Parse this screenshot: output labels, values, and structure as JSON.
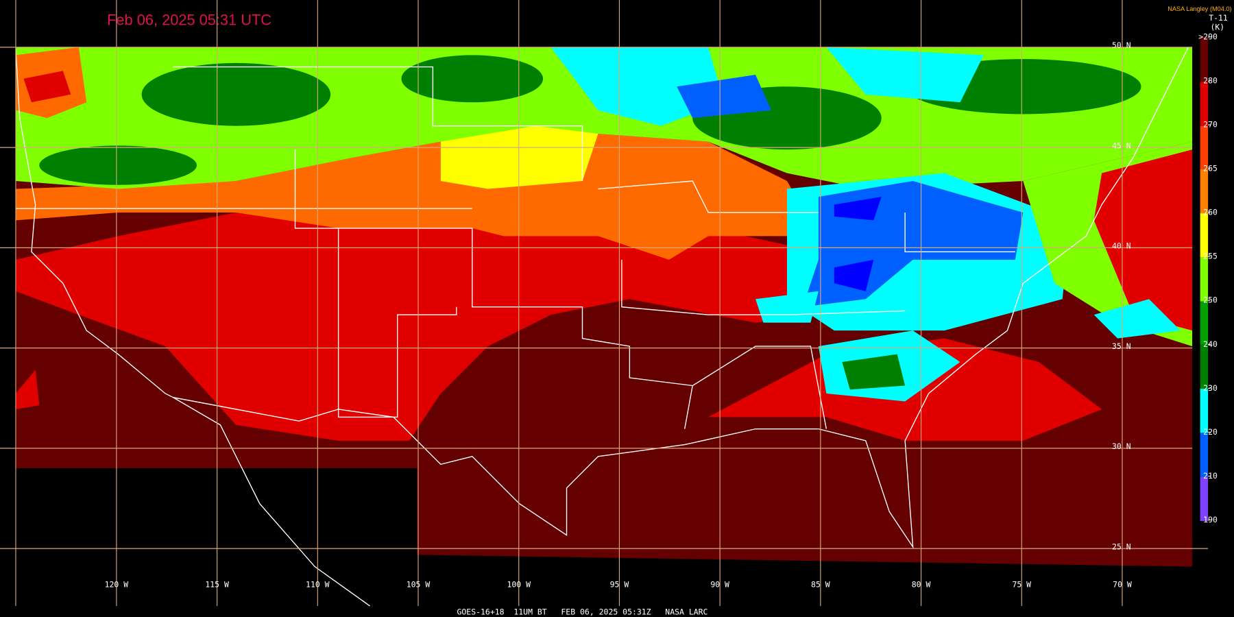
{
  "header": {
    "timestamp": "Feb 06, 2025 05:31 UTC",
    "credit": "NASA Langley (M04.0)"
  },
  "colorbar": {
    "title": "T-11",
    "unit": "(K)",
    "ticks": [
      {
        "value": 290,
        "label": ">290"
      },
      280,
      270,
      265,
      260,
      255,
      250,
      240,
      230,
      220,
      210,
      190
    ]
  },
  "latitude_labels": [
    "50 N",
    "45 N",
    "40 N",
    "35 N",
    "30 N",
    "25 N"
  ],
  "longitude_labels": [
    "120 W",
    "115 W",
    "110 W",
    "105 W",
    "100 W",
    "95 W",
    "90 W",
    "85 W",
    "80 W",
    "75 W",
    "70 W"
  ],
  "footer": "GOES-16+18  11UM BT   FEB 06, 2025 05:31Z   NASA LARC"
}
